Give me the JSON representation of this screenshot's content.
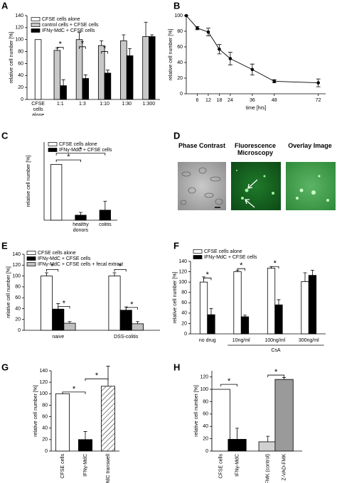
{
  "chart_data": [
    {
      "type": "bar",
      "panel": "A",
      "ylabel": "relative cell number [%]",
      "categories": [
        "CFSE cells alone",
        "1:1",
        "1:3",
        "1:10",
        "1:30",
        "1:300"
      ],
      "series": [
        {
          "name": "CFSE cells alone",
          "color": "#ffffff",
          "values": [
            100,
            null,
            null,
            null,
            null,
            null
          ],
          "errors": [
            null,
            null,
            null,
            null,
            null,
            null
          ]
        },
        {
          "name": "control cells + CFSE cells",
          "color": "#c8c8c8",
          "values": [
            null,
            82,
            100,
            90,
            98,
            105
          ],
          "errors": [
            null,
            4,
            12,
            8,
            10,
            24
          ]
        },
        {
          "name": "IFNγ-MdC + CFSE cells",
          "color": "#000000",
          "values": [
            null,
            23,
            35,
            44,
            73,
            105
          ],
          "errors": [
            null,
            10,
            6,
            5,
            12,
            3
          ]
        }
      ],
      "brackets": [
        {
          "text": "*",
          "from": [
            1,
            1
          ],
          "to": [
            1,
            2
          ],
          "y": 87
        },
        {
          "text": "*",
          "from": [
            2,
            1
          ],
          "to": [
            2,
            2
          ],
          "y": 88
        },
        {
          "text": "*",
          "from": [
            3,
            1
          ],
          "to": [
            3,
            2
          ],
          "y": 80
        }
      ],
      "ylim": [
        0,
        140
      ],
      "yticks": [
        0,
        20,
        40,
        60,
        80,
        100,
        120,
        140
      ]
    },
    {
      "type": "line",
      "panel": "B",
      "ylabel": "relative cell number [%]",
      "xlabel": "time [hrs]",
      "color": "#000000",
      "x": [
        0,
        6,
        12,
        18,
        24,
        36,
        48,
        72
      ],
      "values": [
        100,
        84,
        79,
        57,
        45,
        31,
        16,
        14
      ],
      "errors": [
        0,
        2,
        5,
        6,
        8,
        7,
        2,
        5
      ],
      "xlim": [
        0,
        76
      ],
      "xticks": [
        6,
        12,
        18,
        24,
        36,
        48,
        72
      ],
      "ylim": [
        0,
        100
      ],
      "yticks": [
        0,
        20,
        40,
        60,
        80,
        100
      ]
    },
    {
      "type": "bar",
      "panel": "C",
      "ylabel": "relative cell number [%]",
      "categories": [
        null,
        "healthy donors",
        "colitis"
      ],
      "series": [
        {
          "name": "CFSE cells alone",
          "color": "#ffffff",
          "values": [
            100,
            null,
            null
          ],
          "errors": [
            null,
            null,
            null
          ]
        },
        {
          "name": "IFNγ-MdC + CFSE cells",
          "color": "#000000",
          "values": [
            null,
            9,
            18
          ],
          "errors": [
            null,
            5,
            16
          ]
        }
      ],
      "brackets": [
        {
          "text": "*",
          "from": [
            0,
            0
          ],
          "to": [
            1,
            1
          ],
          "y": 108
        },
        {
          "text": "*",
          "from": [
            0,
            0
          ],
          "to": [
            2,
            1
          ],
          "y": 120
        }
      ],
      "ylim": [
        0,
        140
      ]
    },
    {
      "type": "bar",
      "panel": "E",
      "ylabel": "relative cell number [%]",
      "categories": [
        "naive",
        "DSS-colitis"
      ],
      "series": [
        {
          "name": "CFSE cells alone",
          "color": "#ffffff",
          "values": [
            100,
            100
          ],
          "errors": [
            6,
            6
          ]
        },
        {
          "name": "IFNγ-MdC + CFSE cells",
          "color": "#000000",
          "values": [
            39,
            37
          ],
          "errors": [
            10,
            6
          ]
        },
        {
          "name": "IFNγ-MdC + CFSE cells + fecal extract",
          "color": "#c0c0c0",
          "values": [
            13,
            12
          ],
          "errors": [
            3,
            4
          ]
        }
      ],
      "brackets": [
        {
          "text": "*",
          "from": [
            0,
            0
          ],
          "to": [
            0,
            1
          ],
          "y": 112
        },
        {
          "text": "*",
          "from": [
            0,
            1
          ],
          "to": [
            0,
            2
          ],
          "y": 44
        },
        {
          "text": "*",
          "from": [
            1,
            0
          ],
          "to": [
            1,
            1
          ],
          "y": 112
        },
        {
          "text": "*",
          "from": [
            1,
            1
          ],
          "to": [
            1,
            2
          ],
          "y": 42
        }
      ],
      "ylim": [
        0,
        140
      ],
      "yticks": [
        0,
        20,
        40,
        60,
        80,
        100,
        120,
        140
      ]
    },
    {
      "type": "bar",
      "panel": "F",
      "ylabel": "relative cell number [%]",
      "group_label": "CsA",
      "categories": [
        "no drug",
        "10ng/ml",
        "100ng/ml",
        "300ng/ml"
      ],
      "series": [
        {
          "name": "CFSE cells alone",
          "color": "#ffffff",
          "values": [
            100,
            120,
            127,
            101
          ],
          "errors": [
            10,
            3,
            3,
            17
          ]
        },
        {
          "name": "IFNγ-MdC + CFSE cells",
          "color": "#000000",
          "values": [
            37,
            33,
            56,
            113
          ],
          "errors": [
            12,
            3,
            10,
            10
          ]
        }
      ],
      "brackets": [
        {
          "text": "*",
          "from": [
            0,
            0
          ],
          "to": [
            0,
            1
          ],
          "y": 108
        },
        {
          "text": "*",
          "from": [
            1,
            0
          ],
          "to": [
            1,
            1
          ],
          "y": 126
        },
        {
          "text": "*",
          "from": [
            2,
            0
          ],
          "to": [
            2,
            1
          ],
          "y": 130
        }
      ],
      "ylim": [
        0,
        140
      ],
      "yticks": [
        0,
        20,
        40,
        60,
        80,
        100,
        120,
        140
      ]
    },
    {
      "type": "bar",
      "panel": "G",
      "ylabel": "relative cell number [%]",
      "categories": [
        "CFSE cells",
        "IFNγ-MdC",
        "IFNγ-MdC transwell"
      ],
      "series": [
        {
          "values": [
            100,
            20,
            113
          ],
          "errors": [
            null,
            14,
            35
          ],
          "colors": [
            "#ffffff",
            "#000000",
            "#ffffff"
          ],
          "hatch": [
            false,
            false,
            true
          ]
        }
      ],
      "brackets": [
        {
          "text": "*",
          "from": [
            0,
            0
          ],
          "to": [
            1,
            0
          ],
          "y": 103
        },
        {
          "text": "*",
          "from": [
            1,
            0
          ],
          "to": [
            2,
            0
          ],
          "y": 126
        }
      ],
      "ylim": [
        0,
        140
      ],
      "yticks": [
        0,
        20,
        40,
        60,
        80,
        100,
        120,
        140
      ]
    },
    {
      "type": "bar",
      "panel": "H",
      "ylabel": "relative cell number [%]",
      "categories": [
        "CFSE cells",
        "IFNγ-MdC",
        "Z-FAFMK (control)",
        "Z-VAD-FMK"
      ],
      "series": [
        {
          "values": [
            100,
            19,
            15,
            116
          ],
          "errors": [
            null,
            18,
            9,
            3
          ],
          "colors": [
            "#ffffff",
            "#000000",
            "#d0d0d0",
            "#9a9a9a"
          ]
        }
      ],
      "brackets": [
        {
          "text": "*",
          "from": [
            0,
            0
          ],
          "to": [
            1,
            0
          ],
          "y": 108
        },
        {
          "text": "*",
          "from": [
            2,
            0
          ],
          "to": [
            3,
            0
          ],
          "y": 123
        }
      ],
      "ylim": [
        0,
        130
      ],
      "yticks": [
        0,
        20,
        40,
        60,
        80,
        100,
        120
      ]
    }
  ],
  "micrographs": {
    "panel": "D",
    "images": [
      "Phase Contrast",
      "Fluorescence Microscopy",
      "Overlay Image"
    ]
  }
}
